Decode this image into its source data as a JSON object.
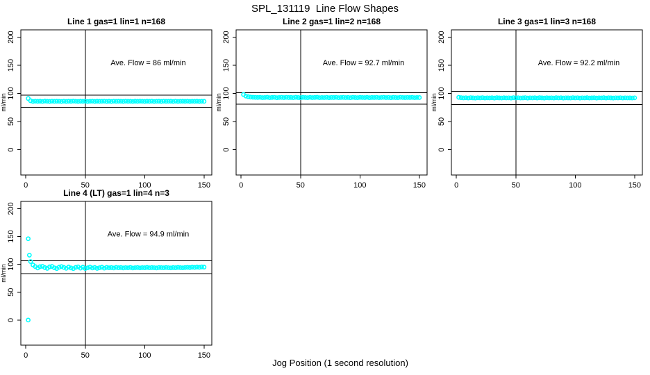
{
  "page": {
    "main_title": "SPL_131119  Line Flow Shapes",
    "x_axis_label": "Jog Position (1 second resolution)"
  },
  "chart_data": {
    "type": "scatter",
    "title": "SPL_131119  Line Flow Shapes",
    "xlabel": "Jog Position (1 second resolution)",
    "ylabel": "ml/min",
    "xlim": [
      -4.2,
      156.5
    ],
    "ylim": [
      -45,
      213
    ],
    "xticks": [
      0,
      50,
      100,
      150
    ],
    "yticks": [
      0,
      50,
      100,
      150,
      200
    ],
    "grid": false,
    "point_color": "#00FFFF",
    "axis_color": "#000000",
    "subplots": [
      {
        "title": "Line 1 gas=1 lin=1 n=168",
        "annotation": "Ave. Flow =  86  ml/min",
        "ave_flow": 86,
        "n": 168,
        "hlines": [
          96.8,
          75.3
        ],
        "vline": 50,
        "series": {
          "x0": 2,
          "dx": 2,
          "y": [
            91,
            87,
            85.8,
            86.2,
            85.9,
            86.1,
            85.7,
            86.3,
            86.0,
            85.8,
            86.2,
            85.9,
            86.1,
            86.0,
            85.7,
            86.2,
            85.8,
            86.1,
            85.9,
            86.3,
            86.0,
            85.8,
            86.1,
            85.9,
            86.2,
            85.7,
            86.0,
            86.2,
            85.8,
            86.1,
            85.9,
            86.0,
            86.2,
            85.8,
            86.1,
            85.7,
            86.2,
            85.9,
            86.1,
            86.0,
            85.8,
            86.2,
            85.9,
            86.0,
            85.7,
            86.1,
            85.9,
            86.2,
            86.0,
            85.8,
            86.1,
            85.9,
            86.2,
            85.7,
            86.0,
            86.1,
            85.8,
            86.2,
            85.9,
            86.0,
            86.1,
            85.7,
            86.2,
            85.8,
            86.0,
            86.1,
            85.9,
            86.2,
            85.8,
            86.0,
            85.9,
            86.1,
            85.8,
            86.0,
            85.9
          ]
        },
        "outliers": []
      },
      {
        "title": "Line 2 gas=1 lin=2 n=168",
        "annotation": "Ave. Flow =  92.7  ml/min",
        "ave_flow": 92.7,
        "n": 168,
        "hlines": [
          101.5,
          81.0
        ],
        "vline": 50,
        "series": {
          "x0": 2,
          "dx": 2,
          "y": [
            98,
            95.3,
            94.1,
            93.5,
            93.2,
            93.0,
            92.9,
            93.1,
            92.6,
            92.8,
            93.2,
            92.5,
            92.9,
            93.1,
            92.4,
            92.8,
            93.0,
            92.6,
            93.1,
            92.7,
            92.9,
            92.5,
            93.2,
            92.7,
            92.4,
            93.0,
            92.8,
            92.5,
            93.1,
            92.6,
            92.9,
            93.2,
            92.5,
            92.8,
            92.6,
            93.0,
            92.4,
            92.9,
            92.7,
            93.1,
            92.5,
            92.8,
            93.0,
            92.6,
            92.9,
            92.4,
            93.1,
            92.7,
            92.5,
            93.0,
            92.8,
            92.6,
            93.1,
            92.4,
            92.9,
            92.7,
            93.0,
            92.5,
            92.8,
            93.1,
            92.6,
            92.9,
            92.4,
            93.0,
            92.7,
            92.5,
            93.1,
            92.8,
            92.6,
            92.9,
            92.7,
            93.0,
            92.5,
            92.8,
            92.7
          ]
        },
        "outliers": []
      },
      {
        "title": "Line 3 gas=1 lin=3 n=168",
        "annotation": "Ave. Flow =  92.2  ml/min",
        "ave_flow": 92.2,
        "n": 168,
        "hlines": [
          103.5,
          80.5
        ],
        "vline": 50,
        "series": {
          "x0": 2,
          "dx": 2,
          "y": [
            93.0,
            92.4,
            92.0,
            92.3,
            91.9,
            92.4,
            92.1,
            91.8,
            92.3,
            92.0,
            92.4,
            91.9,
            92.2,
            92.0,
            92.3,
            91.8,
            92.4,
            92.1,
            91.9,
            92.3,
            92.0,
            92.2,
            91.8,
            92.4,
            92.0,
            92.3,
            91.9,
            92.1,
            92.4,
            91.8,
            92.2,
            92.0,
            92.3,
            91.9,
            92.4,
            92.1,
            91.8,
            92.3,
            92.0,
            92.2,
            91.9,
            92.4,
            92.0,
            92.3,
            91.8,
            92.2,
            92.1,
            91.9,
            92.4,
            92.0,
            92.3,
            91.8,
            92.2,
            92.0,
            92.4,
            91.9,
            92.1,
            92.3,
            91.8,
            92.2,
            92.0,
            92.4,
            91.9,
            92.3,
            92.1,
            91.8,
            92.2,
            92.0,
            92.3,
            91.9,
            92.2,
            92.0,
            92.1,
            91.9,
            92.2
          ]
        },
        "outliers": []
      },
      {
        "title": "Line 4 (LT) gas=1 lin=4 n=3",
        "annotation": "Ave. Flow =  94.9  ml/min",
        "ave_flow": 94.9,
        "n": 3,
        "hlines": [
          106.5,
          83.5
        ],
        "vline": 50,
        "series": {
          "x0": 4,
          "dx": 2,
          "y": [
            105,
            99,
            96,
            93.5,
            95.8,
            96.5,
            94.2,
            92.8,
            95.5,
            96.2,
            93.8,
            92.5,
            94.8,
            96.0,
            94.5,
            92.9,
            95.2,
            93.6,
            92.4,
            94.6,
            95.4,
            93.2,
            94.9,
            92.6,
            93.8,
            95.1,
            93.5,
            94.4,
            92.8,
            94.0,
            94.8,
            93.2,
            94.5,
            93.8,
            94.2,
            93.5,
            94.6,
            93.9,
            94.3,
            93.6,
            94.1,
            93.8,
            94.4,
            93.5,
            94.0,
            94.3,
            93.7,
            94.1,
            93.9,
            94.5,
            93.8,
            94.2,
            94.0,
            93.6,
            94.3,
            94.1,
            93.8,
            94.4,
            94.0,
            93.7,
            94.2,
            93.9,
            94.5,
            94.1,
            93.8,
            94.3,
            94.6,
            94.2,
            94.8,
            94.5,
            95.0,
            94.7,
            95.3,
            95.0
          ]
        },
        "outliers": [
          [
            2,
            146
          ],
          [
            3,
            116.5
          ],
          [
            2,
            0
          ]
        ]
      }
    ]
  }
}
